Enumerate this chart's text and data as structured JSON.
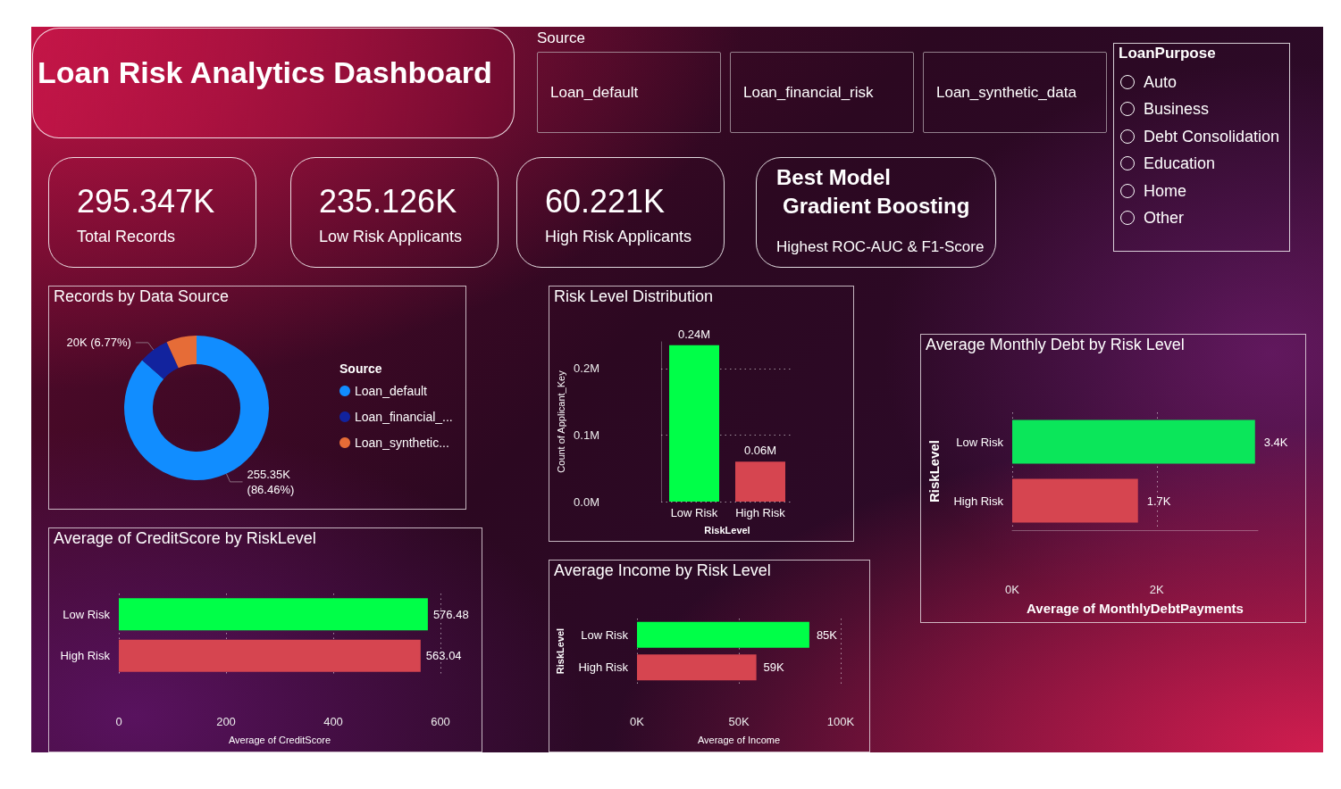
{
  "chart_data": [
    {
      "type": "other",
      "title": "Loan Risk Analytics Dashboard"
    },
    {
      "type": "other",
      "title": "Source",
      "categories": [
        "Loan_default",
        "Loan_financial_risk",
        "Loan_synthetic_data"
      ]
    },
    {
      "type": "other",
      "title": "LoanPurpose",
      "categories": [
        "Auto",
        "Business",
        "Debt Consolidation",
        "Education",
        "Home",
        "Other"
      ]
    },
    {
      "type": "other",
      "title": "295.347K",
      "subtitle": "Total Records"
    },
    {
      "type": "other",
      "title": "235.126K",
      "subtitle": "Low Risk Applicants"
    },
    {
      "type": "other",
      "title": "60.221K",
      "subtitle": "High Risk Applicants"
    },
    {
      "type": "other",
      "title": "Best Model",
      "subtitle": "Gradient Boosting",
      "annotations": [
        "Highest ROC-AUC & F1-Score"
      ]
    },
    {
      "type": "donut",
      "title": "Records by Data Source",
      "categories": [
        "Loan_default",
        "Loan_financial_...",
        "Loan_synthetic..."
      ],
      "values": [
        86.46,
        6.77,
        6.77
      ],
      "colors": [
        "#118dff",
        "#12239e",
        "#e66c37"
      ],
      "value_labels": [
        "255.35K (86.46%)",
        "20K (6.77%)",
        null
      ],
      "legend": "right",
      "legend_title": "Source"
    },
    {
      "type": "bar",
      "title": "Risk Level Distribution",
      "categories": [
        "Low Risk",
        "High Risk"
      ],
      "values": [
        0.235,
        0.06
      ],
      "colors": [
        "#00ff48",
        "#d64550"
      ],
      "value_labels": [
        "0.24M",
        "0.06M"
      ],
      "ylim": [
        0,
        0.24
      ],
      "yticks": [
        {
          "value": 0,
          "label": "0.0M"
        },
        {
          "value": 0.1,
          "label": "0.1M"
        },
        {
          "value": 0.2,
          "label": "0.2M"
        }
      ],
      "xlabel": "RiskLevel",
      "ylabel": "Count of Applicant_Key",
      "grid": "y"
    },
    {
      "type": "bar",
      "orientation": "horizontal",
      "title": "Average Monthly Debt by Risk Level",
      "categories": [
        "Low Risk",
        "High Risk"
      ],
      "values": [
        3.36,
        1.74
      ],
      "colors": [
        "#0be65a",
        "#d64550"
      ],
      "value_labels": [
        "3.4K",
        "1.7K"
      ],
      "xlim": [
        0,
        3.4
      ],
      "xticks": [
        {
          "value": 0,
          "label": "0K"
        },
        {
          "value": 2,
          "label": "2K"
        }
      ],
      "xlabel": "Average of MonthlyDebtPayments",
      "ylabel": "RiskLevel",
      "grid": "x"
    },
    {
      "type": "bar",
      "orientation": "horizontal",
      "title": "Average of CreditScore by RiskLevel",
      "categories": [
        "Low Risk",
        "High Risk"
      ],
      "values": [
        576.48,
        563.04
      ],
      "colors": [
        "#00ff48",
        "#d64550"
      ],
      "data_labels": true,
      "xlim": [
        0,
        600
      ],
      "xticks": [
        0,
        200,
        400,
        600
      ],
      "xlabel": "Average of CreditScore",
      "grid": "x"
    },
    {
      "type": "bar",
      "orientation": "horizontal",
      "title": "Average Income by Risk Level",
      "categories": [
        "Low Risk",
        "High Risk"
      ],
      "values": [
        84.6,
        58.6
      ],
      "colors": [
        "#00ff48",
        "#d64550"
      ],
      "value_labels": [
        "85K",
        "59K"
      ],
      "xlim": [
        0,
        100
      ],
      "xticks": [
        {
          "value": 0,
          "label": "0K"
        },
        {
          "value": 50,
          "label": "50K"
        },
        {
          "value": 100,
          "label": "100K"
        }
      ],
      "xlabel": "Average of Income",
      "ylabel": "RiskLevel",
      "grid": "x"
    }
  ]
}
